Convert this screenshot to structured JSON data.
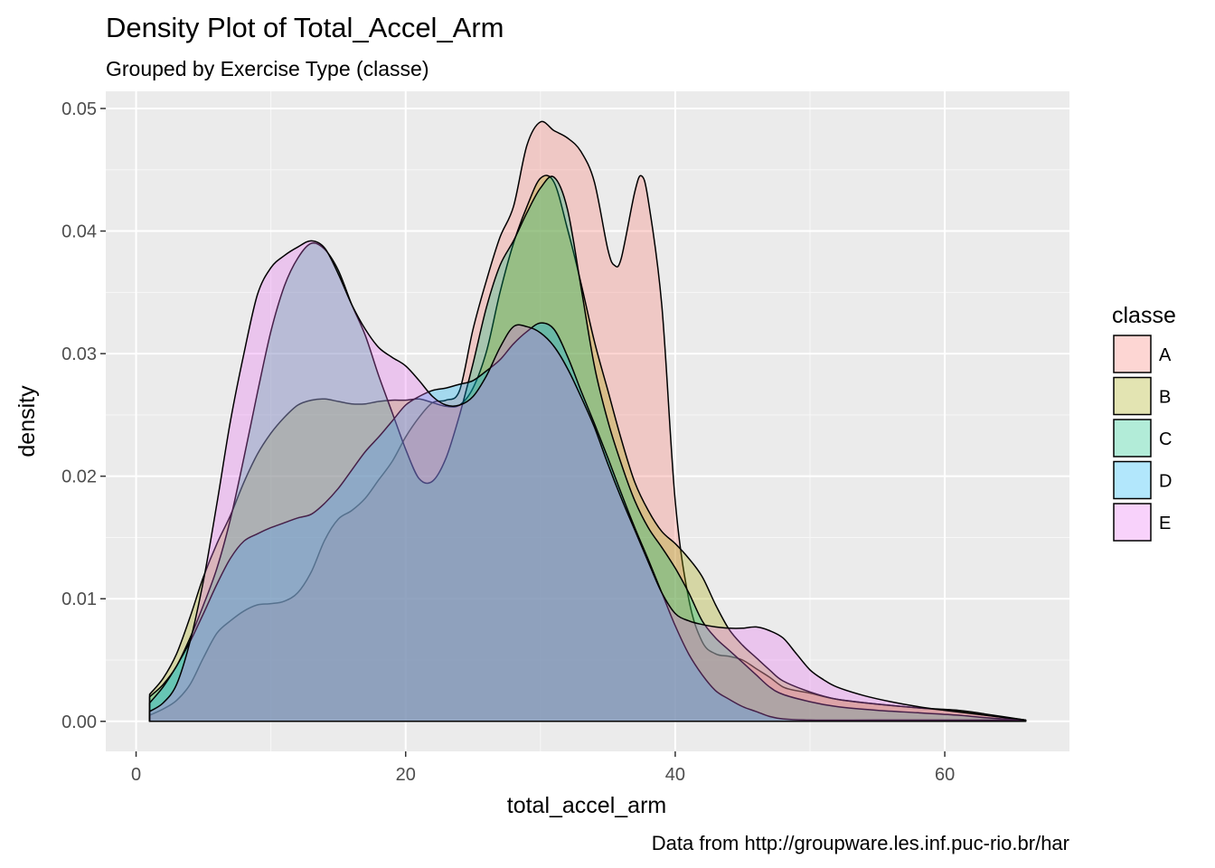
{
  "chart_data": {
    "type": "area",
    "title": "Density Plot of Total_Accel_Arm",
    "subtitle": "Grouped by Exercise Type (classe)",
    "xlabel": "total_accel_arm",
    "ylabel": "density",
    "caption": "Data from http://groupware.les.inf.puc-rio.br/har",
    "xlim": [
      -2.25,
      69.25
    ],
    "ylim": [
      -0.00245,
      0.0514
    ],
    "x_ticks": [
      0,
      20,
      40,
      60
    ],
    "x_tick_labels": [
      "0",
      "20",
      "40",
      "60"
    ],
    "y_ticks": [
      0,
      0.01,
      0.02,
      0.03,
      0.04,
      0.05
    ],
    "y_tick_labels": [
      "0.00",
      "0.01",
      "0.02",
      "0.03",
      "0.04",
      "0.05"
    ],
    "grid": true,
    "legend": {
      "title": "classe",
      "position": "right"
    },
    "series": [
      {
        "name": "A",
        "color": "#F8766D",
        "points": [
          [
            1,
            0.0005
          ],
          [
            2,
            0.001
          ],
          [
            3,
            0.0017
          ],
          [
            4,
            0.003
          ],
          [
            5,
            0.0052
          ],
          [
            6,
            0.0072
          ],
          [
            7,
            0.0082
          ],
          [
            8,
            0.009
          ],
          [
            9,
            0.0095
          ],
          [
            10,
            0.0096
          ],
          [
            11,
            0.0098
          ],
          [
            12,
            0.0105
          ],
          [
            13,
            0.0122
          ],
          [
            14,
            0.0148
          ],
          [
            15,
            0.0165
          ],
          [
            16,
            0.0172
          ],
          [
            17,
            0.0182
          ],
          [
            18,
            0.0197
          ],
          [
            19,
            0.0212
          ],
          [
            20,
            0.0232
          ],
          [
            21,
            0.0248
          ],
          [
            22,
            0.026
          ],
          [
            23,
            0.0262
          ],
          [
            24,
            0.027
          ],
          [
            25,
            0.032
          ],
          [
            26,
            0.036
          ],
          [
            27,
            0.0395
          ],
          [
            28,
            0.042
          ],
          [
            29,
            0.047
          ],
          [
            30,
            0.0489
          ],
          [
            31,
            0.0482
          ],
          [
            32,
            0.0476
          ],
          [
            33,
            0.0465
          ],
          [
            34,
            0.044
          ],
          [
            35,
            0.0385
          ],
          [
            35.5,
            0.0372
          ],
          [
            36,
            0.0378
          ],
          [
            37,
            0.0432
          ],
          [
            37.5,
            0.0445
          ],
          [
            38,
            0.0425
          ],
          [
            39,
            0.034
          ],
          [
            40,
            0.018
          ],
          [
            41,
            0.01
          ],
          [
            42,
            0.0065
          ],
          [
            43,
            0.0055
          ],
          [
            44,
            0.0053
          ],
          [
            45,
            0.005
          ],
          [
            46,
            0.0043
          ],
          [
            47,
            0.0036
          ],
          [
            48,
            0.0028
          ],
          [
            49,
            0.0025
          ],
          [
            50,
            0.0023
          ],
          [
            52,
            0.0018
          ],
          [
            55,
            0.0014
          ],
          [
            58,
            0.0011
          ],
          [
            61,
            0.0008
          ],
          [
            63,
            0.0005
          ],
          [
            66,
            0.0001
          ]
        ]
      },
      {
        "name": "B",
        "color": "#A3A500",
        "points": [
          [
            1,
            0.0022
          ],
          [
            2,
            0.0035
          ],
          [
            3,
            0.0055
          ],
          [
            4,
            0.0085
          ],
          [
            5,
            0.0118
          ],
          [
            6,
            0.0145
          ],
          [
            7,
            0.0168
          ],
          [
            8,
            0.0195
          ],
          [
            9,
            0.0218
          ],
          [
            10,
            0.0235
          ],
          [
            11,
            0.0248
          ],
          [
            12,
            0.0258
          ],
          [
            13,
            0.0262
          ],
          [
            14,
            0.0263
          ],
          [
            15,
            0.0261
          ],
          [
            16,
            0.0259
          ],
          [
            17,
            0.0259
          ],
          [
            18,
            0.0261
          ],
          [
            19,
            0.0262
          ],
          [
            20,
            0.0262
          ],
          [
            21,
            0.0263
          ],
          [
            22,
            0.026
          ],
          [
            23,
            0.0257
          ],
          [
            24,
            0.0258
          ],
          [
            25,
            0.0272
          ],
          [
            26,
            0.0302
          ],
          [
            27,
            0.035
          ],
          [
            28,
            0.039
          ],
          [
            29,
            0.042
          ],
          [
            30,
            0.0443
          ],
          [
            31,
            0.044
          ],
          [
            32,
            0.0402
          ],
          [
            33,
            0.0358
          ],
          [
            34,
            0.031
          ],
          [
            35,
            0.027
          ],
          [
            36,
            0.023
          ],
          [
            37,
            0.0195
          ],
          [
            38,
            0.0172
          ],
          [
            39,
            0.0155
          ],
          [
            40,
            0.0145
          ],
          [
            41,
            0.0133
          ],
          [
            42,
            0.0118
          ],
          [
            43,
            0.0095
          ],
          [
            44,
            0.0075
          ],
          [
            45,
            0.0062
          ],
          [
            46,
            0.0052
          ],
          [
            47,
            0.0042
          ],
          [
            48,
            0.0033
          ],
          [
            50,
            0.0024
          ],
          [
            52,
            0.0018
          ],
          [
            55,
            0.0014
          ],
          [
            58,
            0.0011
          ],
          [
            61,
            0.0009
          ],
          [
            63,
            0.0006
          ],
          [
            66,
            0.0001
          ]
        ]
      },
      {
        "name": "C",
        "color": "#00BF7D",
        "points": [
          [
            1,
            0.002
          ],
          [
            2,
            0.003
          ],
          [
            3,
            0.0045
          ],
          [
            4,
            0.0068
          ],
          [
            5,
            0.0095
          ],
          [
            6,
            0.0125
          ],
          [
            7,
            0.0165
          ],
          [
            8,
            0.0215
          ],
          [
            9,
            0.0268
          ],
          [
            10,
            0.0318
          ],
          [
            11,
            0.0355
          ],
          [
            12,
            0.0378
          ],
          [
            13,
            0.039
          ],
          [
            14,
            0.0385
          ],
          [
            15,
            0.0368
          ],
          [
            16,
            0.034
          ],
          [
            17,
            0.0315
          ],
          [
            18,
            0.0282
          ],
          [
            19,
            0.0252
          ],
          [
            20,
            0.0222
          ],
          [
            21,
            0.0198
          ],
          [
            22,
            0.0196
          ],
          [
            23,
            0.0215
          ],
          [
            24,
            0.025
          ],
          [
            25,
            0.0292
          ],
          [
            26,
            0.0338
          ],
          [
            27,
            0.0372
          ],
          [
            28,
            0.0392
          ],
          [
            29,
            0.0415
          ],
          [
            30,
            0.0435
          ],
          [
            31,
            0.0444
          ],
          [
            32,
            0.0418
          ],
          [
            33,
            0.0355
          ],
          [
            34,
            0.029
          ],
          [
            35,
            0.0245
          ],
          [
            36,
            0.021
          ],
          [
            37,
            0.018
          ],
          [
            38,
            0.0158
          ],
          [
            39,
            0.0142
          ],
          [
            40,
            0.0125
          ],
          [
            41,
            0.0105
          ],
          [
            42,
            0.0082
          ],
          [
            43,
            0.0068
          ],
          [
            44,
            0.0058
          ],
          [
            45,
            0.0048
          ],
          [
            46,
            0.0038
          ],
          [
            47,
            0.0028
          ],
          [
            48,
            0.0022
          ],
          [
            50,
            0.0016
          ],
          [
            52,
            0.0012
          ],
          [
            55,
            0.0009
          ],
          [
            58,
            0.0007
          ],
          [
            61,
            0.0005
          ],
          [
            63,
            0.0003
          ],
          [
            66,
            0.0001
          ]
        ]
      },
      {
        "name": "D",
        "color": "#00B0F6",
        "points": [
          [
            1,
            0.0015
          ],
          [
            2,
            0.0028
          ],
          [
            3,
            0.0045
          ],
          [
            4,
            0.0065
          ],
          [
            5,
            0.0088
          ],
          [
            6,
            0.0112
          ],
          [
            7,
            0.0133
          ],
          [
            8,
            0.0147
          ],
          [
            9,
            0.0153
          ],
          [
            10,
            0.0158
          ],
          [
            11,
            0.0162
          ],
          [
            12,
            0.0166
          ],
          [
            13,
            0.0169
          ],
          [
            14,
            0.0178
          ],
          [
            15,
            0.019
          ],
          [
            16,
            0.0205
          ],
          [
            17,
            0.022
          ],
          [
            18,
            0.0232
          ],
          [
            19,
            0.0245
          ],
          [
            20,
            0.0258
          ],
          [
            21,
            0.0265
          ],
          [
            22,
            0.027
          ],
          [
            23,
            0.0272
          ],
          [
            24,
            0.0275
          ],
          [
            25,
            0.0278
          ],
          [
            26,
            0.0286
          ],
          [
            27,
            0.0295
          ],
          [
            28,
            0.0308
          ],
          [
            29,
            0.0318
          ],
          [
            30,
            0.0325
          ],
          [
            31,
            0.032
          ],
          [
            32,
            0.0298
          ],
          [
            33,
            0.027
          ],
          [
            34,
            0.0243
          ],
          [
            35,
            0.0215
          ],
          [
            36,
            0.0186
          ],
          [
            37,
            0.0158
          ],
          [
            38,
            0.0132
          ],
          [
            39,
            0.0105
          ],
          [
            40,
            0.0078
          ],
          [
            41,
            0.0055
          ],
          [
            42,
            0.0038
          ],
          [
            43,
            0.0025
          ],
          [
            44,
            0.0018
          ],
          [
            45,
            0.0012
          ],
          [
            46,
            0.0008
          ],
          [
            47,
            0.0004
          ],
          [
            48,
            0.0002
          ],
          [
            50,
            0.0001
          ],
          [
            55,
            0.0001
          ],
          [
            60,
            0.0001
          ],
          [
            66,
            0.0001
          ]
        ]
      },
      {
        "name": "E",
        "color": "#E76BF3",
        "points": [
          [
            1,
            0.0008
          ],
          [
            2,
            0.0015
          ],
          [
            3,
            0.003
          ],
          [
            4,
            0.0065
          ],
          [
            5,
            0.0115
          ],
          [
            6,
            0.0178
          ],
          [
            7,
            0.0245
          ],
          [
            8,
            0.03
          ],
          [
            9,
            0.0348
          ],
          [
            10,
            0.037
          ],
          [
            11,
            0.038
          ],
          [
            12,
            0.0387
          ],
          [
            13,
            0.0392
          ],
          [
            14,
            0.0386
          ],
          [
            15,
            0.0365
          ],
          [
            16,
            0.034
          ],
          [
            17,
            0.032
          ],
          [
            18,
            0.0305
          ],
          [
            19,
            0.0297
          ],
          [
            20,
            0.029
          ],
          [
            21,
            0.0278
          ],
          [
            22,
            0.0265
          ],
          [
            23,
            0.0258
          ],
          [
            24,
            0.0258
          ],
          [
            25,
            0.0265
          ],
          [
            26,
            0.0282
          ],
          [
            27,
            0.0305
          ],
          [
            28,
            0.0322
          ],
          [
            29,
            0.0322
          ],
          [
            30,
            0.0317
          ],
          [
            31,
            0.0306
          ],
          [
            32,
            0.0288
          ],
          [
            33,
            0.0265
          ],
          [
            34,
            0.024
          ],
          [
            35,
            0.021
          ],
          [
            36,
            0.0182
          ],
          [
            37,
            0.0156
          ],
          [
            38,
            0.013
          ],
          [
            39,
            0.0105
          ],
          [
            40,
            0.0088
          ],
          [
            41,
            0.0082
          ],
          [
            42,
            0.0079
          ],
          [
            43,
            0.0077
          ],
          [
            44,
            0.0076
          ],
          [
            45,
            0.0076
          ],
          [
            46,
            0.0077
          ],
          [
            47,
            0.0074
          ],
          [
            48,
            0.0068
          ],
          [
            49,
            0.0055
          ],
          [
            50,
            0.0042
          ],
          [
            51,
            0.0034
          ],
          [
            52,
            0.0028
          ],
          [
            54,
            0.0021
          ],
          [
            56,
            0.0016
          ],
          [
            58,
            0.0012
          ],
          [
            60,
            0.0009
          ],
          [
            63,
            0.0005
          ],
          [
            66,
            0.0001
          ]
        ]
      }
    ]
  }
}
